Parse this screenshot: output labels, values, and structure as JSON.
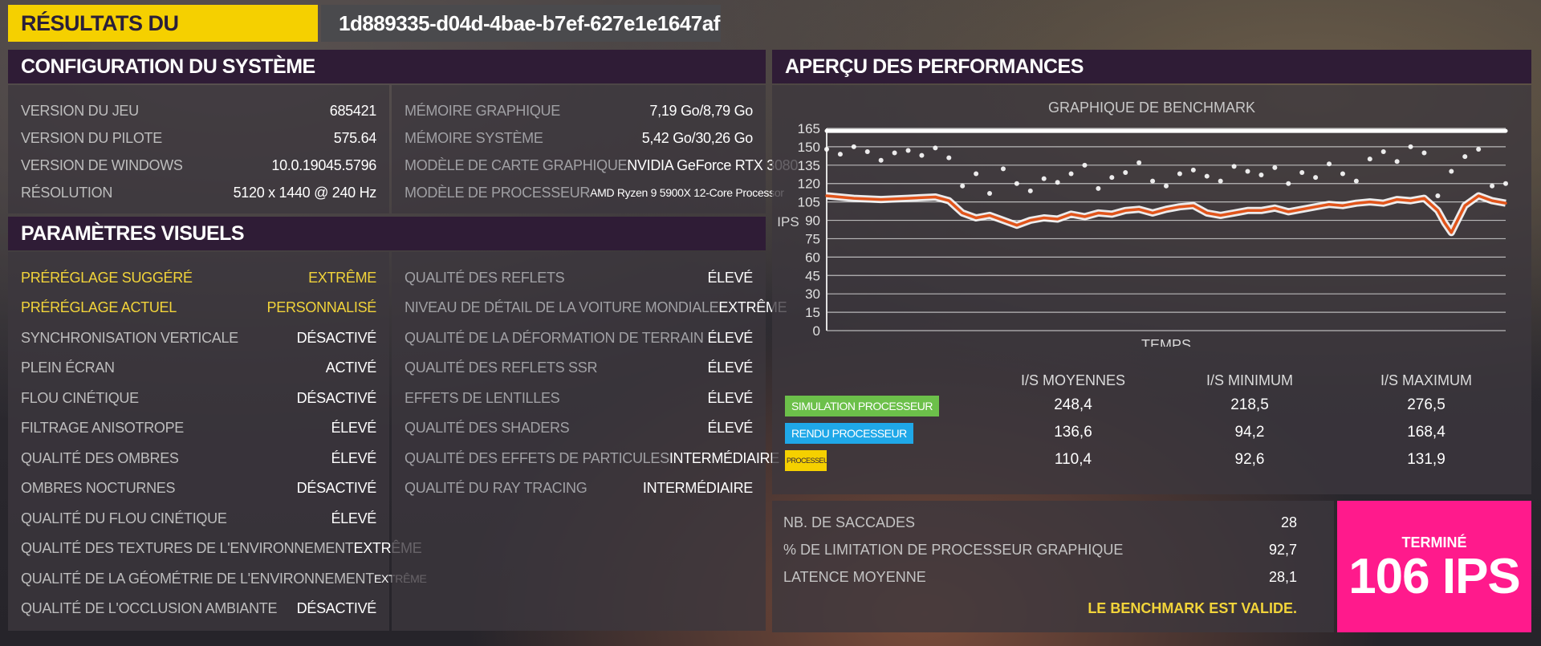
{
  "header": {
    "title": "RÉSULTATS DU BENCHMARK",
    "run_id": "1d889335-d04d-4bae-b7ef-627e1e1647af"
  },
  "system": {
    "title": "CONFIGURATION DU SYSTÈME",
    "left": [
      {
        "label": "VERSION DU JEU",
        "value": "685421"
      },
      {
        "label": "VERSION DU PILOTE",
        "value": "575.64"
      },
      {
        "label": "VERSION DE WINDOWS",
        "value": "10.0.19045.5796"
      },
      {
        "label": "RÉSOLUTION",
        "value": "5120 x 1440 @ 240 Hz"
      }
    ],
    "right": [
      {
        "label": "MÉMOIRE GRAPHIQUE",
        "value": "7,19 Go/8,79 Go"
      },
      {
        "label": "MÉMOIRE SYSTÈME",
        "value": "5,42 Go/30,26 Go"
      },
      {
        "label": "MODÈLE DE CARTE GRAPHIQUE",
        "value": "NVIDIA GeForce RTX 3080"
      },
      {
        "label": "MODÈLE DE PROCESSEUR",
        "value": "AMD Ryzen 9 5900X 12-Core Processor"
      }
    ]
  },
  "visual": {
    "title": "PARAMÈTRES VISUELS",
    "left": [
      {
        "label": "PRÉRÉGLAGE SUGGÉRÉ",
        "value": "EXTRÊME"
      },
      {
        "label": "PRÉRÉGLAGE ACTUEL",
        "value": "PERSONNALISÉ"
      },
      {
        "label": "SYNCHRONISATION VERTICALE",
        "value": "DÉSACTIVÉ"
      },
      {
        "label": "PLEIN ÉCRAN",
        "value": "ACTIVÉ"
      },
      {
        "label": "FLOU CINÉTIQUE",
        "value": "DÉSACTIVÉ"
      },
      {
        "label": "FILTRAGE ANISOTROPE",
        "value": "ÉLEVÉ"
      },
      {
        "label": "QUALITÉ DES OMBRES",
        "value": "ÉLEVÉ"
      },
      {
        "label": "OMBRES NOCTURNES",
        "value": "DÉSACTIVÉ"
      },
      {
        "label": "QUALITÉ DU FLOU CINÉTIQUE",
        "value": "ÉLEVÉ"
      },
      {
        "label": "QUALITÉ DES TEXTURES DE L'ENVIRONNEMENT",
        "value": "EXTRÊME"
      },
      {
        "label": "QUALITÉ DE LA GÉOMÉTRIE DE L'ENVIRONNEMENT",
        "value": "EXTRÊME"
      },
      {
        "label": "QUALITÉ DE L'OCCLUSION AMBIANTE",
        "value": "DÉSACTIVÉ"
      }
    ],
    "right": [
      {
        "label": "QUALITÉ DES REFLETS",
        "value": "ÉLEVÉ"
      },
      {
        "label": "NIVEAU DE DÉTAIL DE LA VOITURE MONDIALE",
        "value": "EXTRÊME"
      },
      {
        "label": "QUALITÉ DE LA DÉFORMATION DE TERRAIN",
        "value": "ÉLEVÉ"
      },
      {
        "label": "QUALITÉ DES REFLETS SSR",
        "value": "ÉLEVÉ"
      },
      {
        "label": "EFFETS DE LENTILLES",
        "value": "ÉLEVÉ"
      },
      {
        "label": "QUALITÉ DES SHADERS",
        "value": "ÉLEVÉ"
      },
      {
        "label": "QUALITÉ DES EFFETS DE PARTICULES",
        "value": "INTERMÉDIAIRE"
      },
      {
        "label": "QUALITÉ DU RAY TRACING",
        "value": "INTERMÉDIAIRE"
      }
    ]
  },
  "performance": {
    "title": "APERÇU DES PERFORMANCES",
    "columns": [
      "I/S MOYENNES",
      "I/S MINIMUM",
      "I/S MAXIMUM"
    ],
    "rows": [
      {
        "label": "SIMULATION PROCESSEUR",
        "color": "#6cc04a",
        "values": [
          "248,4",
          "218,5",
          "276,5"
        ]
      },
      {
        "label": "RENDU PROCESSEUR",
        "color": "#1fa8e8",
        "values": [
          "136,6",
          "94,2",
          "168,4"
        ]
      },
      {
        "label": "PROCESSEUR GRAPHIQUE",
        "color": "#f5d000",
        "values": [
          "110,4",
          "92,6",
          "131,9"
        ]
      }
    ]
  },
  "chart_data": {
    "type": "scatter",
    "title": "GRAPHIQUE DE BENCHMARK",
    "xlabel": "TEMPS",
    "ylabel": "IPS",
    "ylim": [
      0,
      165
    ],
    "yticks": [
      "0",
      "15",
      "30",
      "45",
      "60",
      "75",
      "90",
      "105",
      "120",
      "135",
      "150",
      "165"
    ],
    "grid": true,
    "series": [
      {
        "color": "#ffffff",
        "kind": "scatter",
        "x": [
          0,
          2,
          4,
          6,
          8,
          10,
          12,
          14,
          16,
          18,
          20,
          22,
          24,
          26,
          28,
          30,
          32,
          34,
          36,
          38,
          40,
          42,
          44,
          46,
          48,
          50,
          52,
          54,
          56,
          58,
          60,
          62,
          64,
          66,
          68,
          70,
          72,
          74,
          76,
          78,
          80,
          82,
          84,
          86,
          88,
          90,
          92,
          94,
          96,
          98,
          100
        ],
        "y": [
          148,
          144,
          150,
          146,
          139,
          145,
          147,
          143,
          149,
          141,
          118,
          128,
          112,
          132,
          120,
          114,
          124,
          121,
          128,
          135,
          116,
          125,
          129,
          137,
          122,
          118,
          128,
          131,
          126,
          122,
          134,
          130,
          127,
          133,
          120,
          129,
          125,
          136,
          128,
          122,
          140,
          146,
          138,
          150,
          145,
          110,
          130,
          142,
          148,
          118,
          120
        ]
      },
      {
        "color": "#e0541b",
        "kind": "line",
        "x": [
          0,
          4,
          8,
          12,
          16,
          18,
          20,
          22,
          24,
          26,
          28,
          30,
          32,
          34,
          36,
          38,
          40,
          42,
          44,
          46,
          48,
          50,
          52,
          54,
          56,
          58,
          60,
          62,
          64,
          66,
          68,
          70,
          72,
          74,
          76,
          78,
          80,
          82,
          84,
          86,
          88,
          90,
          91,
          92,
          94,
          96,
          98,
          100
        ],
        "y": [
          110,
          108,
          107,
          108,
          109,
          106,
          96,
          92,
          94,
          90,
          86,
          90,
          92,
          91,
          95,
          93,
          96,
          95,
          98,
          99,
          96,
          99,
          101,
          102,
          96,
          94,
          96,
          98,
          98,
          100,
          97,
          99,
          101,
          103,
          102,
          104,
          105,
          104,
          107,
          106,
          108,
          98,
          88,
          80,
          102,
          110,
          106,
          104
        ]
      },
      {
        "color": "#ffffff",
        "kind": "line",
        "x": [
          0,
          100
        ],
        "y": [
          163,
          163
        ]
      }
    ]
  },
  "summary": {
    "rows": [
      {
        "label": "NB. DE SACCADES",
        "value": "28"
      },
      {
        "label": "% DE LIMITATION DE PROCESSEUR GRAPHIQUE",
        "value": "92,7"
      },
      {
        "label": "LATENCE MOYENNE",
        "value": "28,1"
      }
    ],
    "valid_text": "LE BENCHMARK EST VALIDE.",
    "status": "TERMINÉ",
    "fps": "106 IPS"
  }
}
